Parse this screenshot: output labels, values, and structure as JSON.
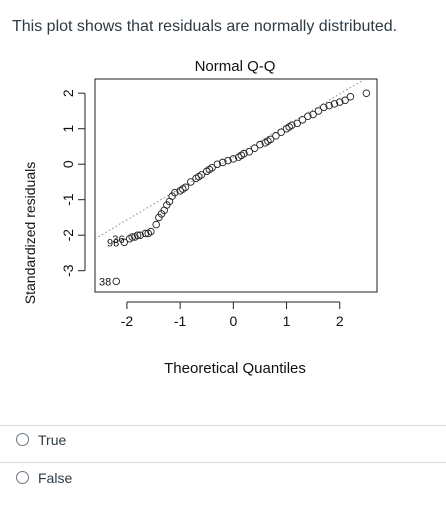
{
  "question": {
    "text": "This plot shows that residuals are normally distributed."
  },
  "chart_data": {
    "type": "scatter",
    "title": "Normal Q-Q",
    "xlabel": "Theoretical Quantiles",
    "ylabel": "Standardized residuals",
    "xlim": [
      -2.6,
      2.7
    ],
    "ylim": [
      -3.6,
      2.4
    ],
    "xticks": [
      "-2",
      "-1",
      "0",
      "1",
      "2"
    ],
    "yticks": [
      "-3",
      "-2",
      "-1",
      "0",
      "1",
      "2"
    ],
    "reference_line": {
      "style": "dotted",
      "x": [
        -2.6,
        2.7
      ],
      "y": [
        -2.1,
        2.6
      ]
    },
    "series": [
      {
        "x": [
          -2.2,
          -2.05,
          -1.95,
          -1.9,
          -1.85,
          -1.8,
          -1.75,
          -1.65,
          -1.6,
          -1.55,
          -1.45,
          -1.4,
          -1.35,
          -1.3,
          -1.25,
          -1.2,
          -1.15,
          -1.1,
          -1.0,
          -0.95,
          -0.9,
          -0.8,
          -0.7,
          -0.65,
          -0.6,
          -0.5,
          -0.45,
          -0.4,
          -0.3,
          -0.2,
          -0.1,
          0.0,
          0.1,
          0.15,
          0.2,
          0.3,
          0.4,
          0.5,
          0.6,
          0.65,
          0.7,
          0.8,
          0.9,
          1.0,
          1.05,
          1.1,
          1.2,
          1.3,
          1.4,
          1.5,
          1.6,
          1.7,
          1.8,
          1.9,
          2.0,
          2.1,
          2.2,
          2.5
        ],
        "y": [
          -3.3,
          -2.2,
          -2.1,
          -2.05,
          -2.05,
          -2.0,
          -2.0,
          -1.95,
          -1.95,
          -1.9,
          -1.7,
          -1.5,
          -1.4,
          -1.3,
          -1.15,
          -1.05,
          -0.9,
          -0.8,
          -0.75,
          -0.7,
          -0.65,
          -0.5,
          -0.4,
          -0.35,
          -0.3,
          -0.2,
          -0.15,
          -0.1,
          0.0,
          0.05,
          0.1,
          0.15,
          0.2,
          0.25,
          0.3,
          0.35,
          0.45,
          0.55,
          0.6,
          0.65,
          0.7,
          0.8,
          0.9,
          1.0,
          1.05,
          1.1,
          1.15,
          1.25,
          1.35,
          1.4,
          1.5,
          1.6,
          1.65,
          1.7,
          1.75,
          1.8,
          1.9,
          2.0
        ]
      }
    ],
    "annotations": [
      {
        "label": "38",
        "x": -2.2,
        "y": -3.3
      },
      {
        "label": "98",
        "x": -2.05,
        "y": -2.2
      },
      {
        "label": "36",
        "x": -1.95,
        "y": -2.1
      }
    ]
  },
  "options": [
    {
      "label": "True"
    },
    {
      "label": "False"
    }
  ]
}
